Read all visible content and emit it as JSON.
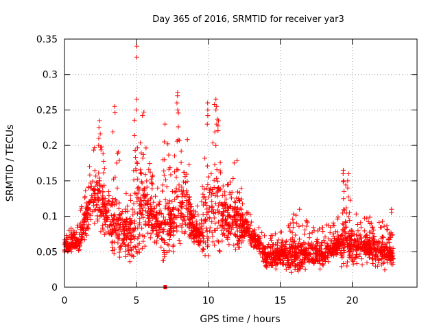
{
  "chart_data": {
    "type": "scatter",
    "title": "Day 365 of 2016, SRMTID for receiver yar3",
    "xlabel": "GPS time / hours",
    "ylabel": "SRMTID / TECUs",
    "xlim": [
      0,
      24.5
    ],
    "ylim": [
      0,
      0.35
    ],
    "xticks": [
      0,
      5,
      10,
      15,
      20
    ],
    "xtick_labels": [
      "0",
      "5",
      "10",
      "15",
      "20"
    ],
    "yticks": [
      0,
      0.05,
      0.1,
      0.15,
      0.2,
      0.25,
      0.3,
      0.35
    ],
    "ytick_labels": [
      "0",
      "0.05",
      "0.1",
      "0.15",
      "0.2",
      "0.25",
      "0.3",
      "0.35"
    ],
    "grid": true,
    "marker": "+",
    "color": "#ff0000",
    "anchor_points": [
      [
        0.0,
        0.055
      ],
      [
        1.0,
        0.065
      ],
      [
        1.5,
        0.1
      ],
      [
        2.0,
        0.13
      ],
      [
        2.5,
        0.12
      ],
      [
        3.0,
        0.1
      ],
      [
        3.5,
        0.085
      ],
      [
        4.0,
        0.08
      ],
      [
        4.5,
        0.075
      ],
      [
        5.0,
        0.1
      ],
      [
        5.5,
        0.12
      ],
      [
        6.0,
        0.1
      ],
      [
        6.5,
        0.085
      ],
      [
        7.0,
        0.08
      ],
      [
        7.5,
        0.095
      ],
      [
        8.0,
        0.11
      ],
      [
        8.5,
        0.11
      ],
      [
        9.0,
        0.075
      ],
      [
        9.5,
        0.07
      ],
      [
        10.0,
        0.09
      ],
      [
        10.5,
        0.12
      ],
      [
        11.0,
        0.1
      ],
      [
        11.5,
        0.095
      ],
      [
        12.0,
        0.09
      ],
      [
        12.5,
        0.085
      ],
      [
        13.0,
        0.07
      ],
      [
        13.5,
        0.06
      ],
      [
        14.0,
        0.04
      ],
      [
        14.5,
        0.04
      ],
      [
        15.0,
        0.045
      ],
      [
        16.0,
        0.045
      ],
      [
        17.0,
        0.045
      ],
      [
        18.0,
        0.045
      ],
      [
        19.0,
        0.06
      ],
      [
        19.5,
        0.065
      ],
      [
        20.0,
        0.055
      ],
      [
        21.0,
        0.055
      ],
      [
        22.0,
        0.05
      ],
      [
        22.8,
        0.045
      ]
    ],
    "upper_envelope": [
      [
        0.0,
        0.08
      ],
      [
        1.0,
        0.09
      ],
      [
        1.6,
        0.19
      ],
      [
        2.0,
        0.2
      ],
      [
        2.4,
        0.23
      ],
      [
        3.0,
        0.15
      ],
      [
        3.5,
        0.25
      ],
      [
        4.0,
        0.17
      ],
      [
        4.5,
        0.14
      ],
      [
        5.0,
        0.34
      ],
      [
        5.5,
        0.25
      ],
      [
        6.0,
        0.17
      ],
      [
        6.5,
        0.14
      ],
      [
        7.0,
        0.23
      ],
      [
        7.5,
        0.16
      ],
      [
        7.9,
        0.275
      ],
      [
        8.5,
        0.22
      ],
      [
        9.0,
        0.11
      ],
      [
        9.5,
        0.12
      ],
      [
        10.0,
        0.26
      ],
      [
        10.6,
        0.265
      ],
      [
        11.0,
        0.18
      ],
      [
        11.5,
        0.17
      ],
      [
        12.0,
        0.18
      ],
      [
        12.5,
        0.13
      ],
      [
        13.0,
        0.1
      ],
      [
        14.0,
        0.07
      ],
      [
        15.0,
        0.08
      ],
      [
        16.0,
        0.11
      ],
      [
        17.0,
        0.09
      ],
      [
        18.0,
        0.085
      ],
      [
        19.0,
        0.1
      ],
      [
        19.4,
        0.165
      ],
      [
        20.0,
        0.11
      ],
      [
        21.0,
        0.1
      ],
      [
        22.0,
        0.095
      ],
      [
        22.8,
        0.08
      ]
    ],
    "point_count": 2600,
    "seed": 365,
    "spikes": [
      {
        "x": 5.0,
        "values": [
          0.34,
          0.265,
          0.25
        ]
      },
      {
        "x": 3.5,
        "values": [
          0.255
        ]
      },
      {
        "x": 7.85,
        "values": [
          0.275,
          0.27,
          0.26,
          0.25
        ]
      },
      {
        "x": 10.55,
        "values": [
          0.265,
          0.255,
          0.25,
          0.23
        ]
      },
      {
        "x": 9.95,
        "values": [
          0.26,
          0.25,
          0.23
        ]
      },
      {
        "x": 19.4,
        "values": [
          0.165,
          0.16,
          0.15,
          0.135,
          0.125
        ]
      },
      {
        "x": 19.7,
        "values": [
          0.16,
          0.15,
          0.14
        ]
      },
      {
        "x": 2.4,
        "values": [
          0.235,
          0.225,
          0.21,
          0.2
        ]
      },
      {
        "x": 6.95,
        "values": [
          0.23,
          0.205,
          0.18
        ]
      },
      {
        "x": 22.7,
        "values": [
          0.11,
          0.105
        ]
      },
      {
        "x": 16.3,
        "values": [
          0.11
        ]
      }
    ],
    "zero_marker": {
      "x": 7.0,
      "y": 0.0
    }
  }
}
